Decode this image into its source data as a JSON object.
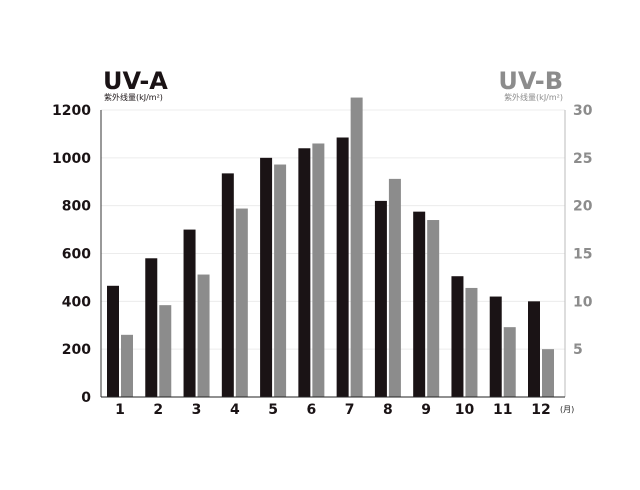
{
  "chart_data": {
    "type": "bar",
    "categories": [
      "1",
      "2",
      "3",
      "4",
      "5",
      "6",
      "7",
      "8",
      "9",
      "10",
      "11",
      "12"
    ],
    "x_unit": "(月)",
    "series": [
      {
        "name": "UV-A",
        "axis": "left",
        "color": "#1a1315",
        "values": [
          465,
          580,
          700,
          935,
          1000,
          1040,
          1085,
          820,
          775,
          505,
          420,
          400
        ]
      },
      {
        "name": "UV-B",
        "axis": "right",
        "color": "#8c8c8c",
        "values": [
          6.5,
          9.6,
          12.8,
          19.7,
          24.3,
          26.5,
          31.3,
          22.8,
          18.5,
          11.4,
          7.3,
          5.0
        ]
      }
    ],
    "left_axis": {
      "title": "UV-A",
      "unit_label": "紫外线量(kJ/m²)",
      "ylim": [
        0,
        1200
      ],
      "ticks": [
        "0",
        "200",
        "400",
        "600",
        "800",
        "1000",
        "1200"
      ],
      "color": "#1a1315"
    },
    "right_axis": {
      "title": "UV-B",
      "unit_label": "紫外线量(kJ/m²)",
      "ylim": [
        0,
        30
      ],
      "ticks": [
        "5",
        "10",
        "15",
        "20",
        "25",
        "30"
      ],
      "color": "#8c8c8c"
    },
    "grid": true,
    "legend": "none"
  }
}
